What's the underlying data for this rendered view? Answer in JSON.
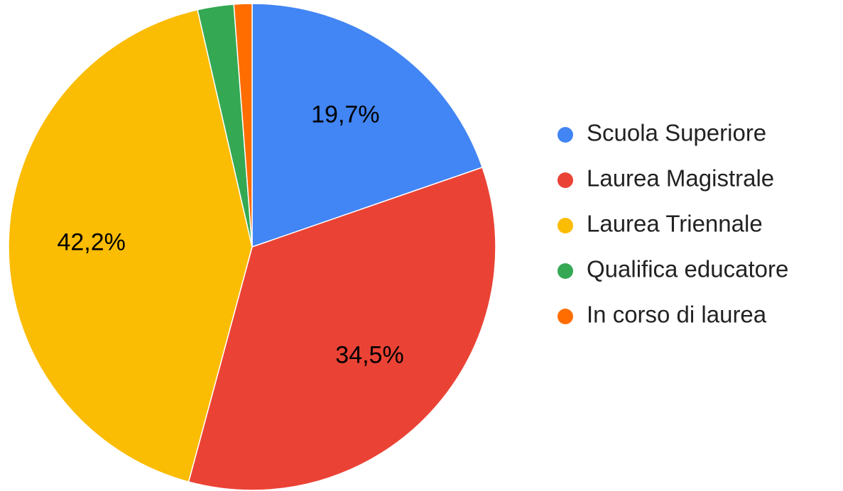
{
  "chart_data": {
    "type": "pie",
    "categories": [
      "Scuola Superiore",
      "Laurea Magistrale",
      "Laurea Triennale",
      "Qualifica educatore",
      "In corso di laurea"
    ],
    "values": [
      19.7,
      34.5,
      42.2,
      2.4,
      1.2
    ],
    "value_labels": [
      "19,7%",
      "34,5%",
      "42,2%",
      null,
      null
    ],
    "colors": [
      "#4285f4",
      "#ea4335",
      "#fbbc04",
      "#34a853",
      "#ff6d01"
    ],
    "legend": "right"
  }
}
